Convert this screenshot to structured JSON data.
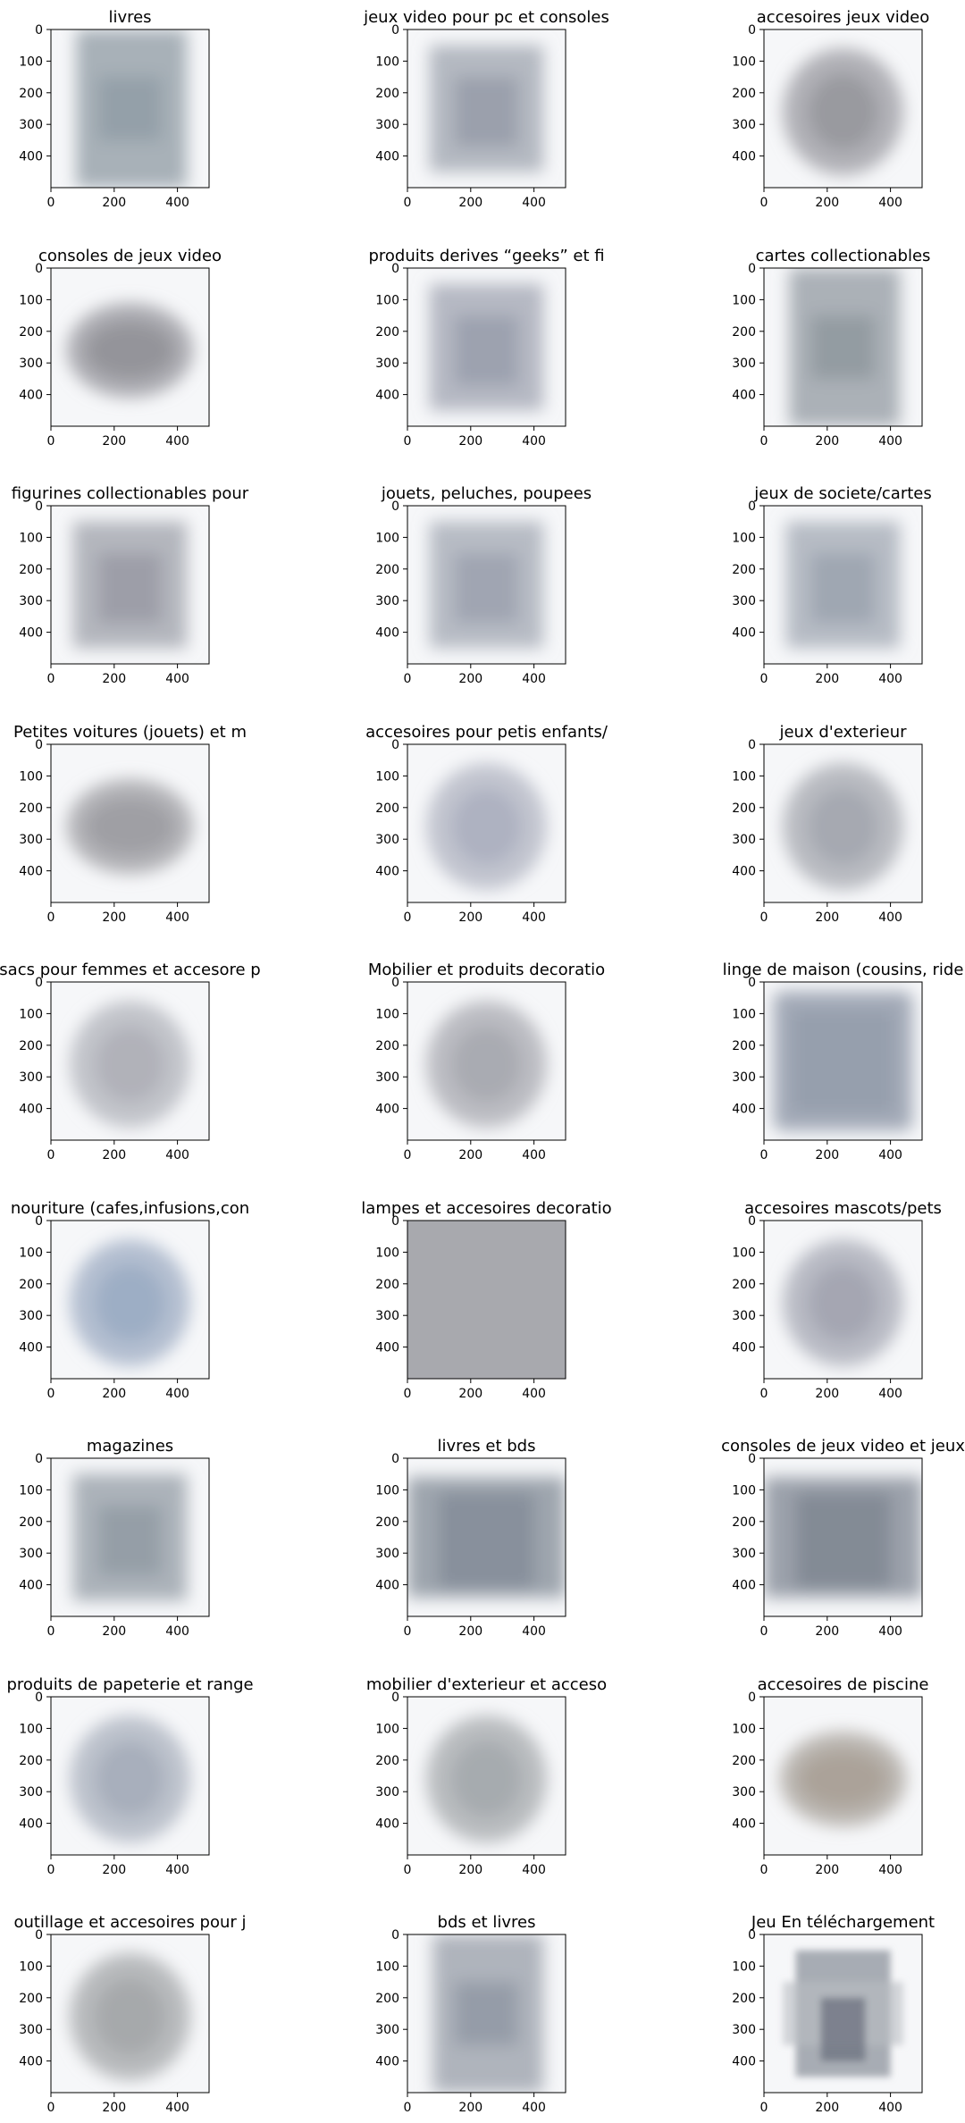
{
  "chart_data": {
    "type": "heatmap",
    "description_of_axes": "each panel shows the mean image of a product category; x and y in pixel units of the averaged image",
    "xlim": [
      0,
      500
    ],
    "ylim": [
      500,
      0
    ],
    "xticks": [
      0,
      200,
      400
    ],
    "yticks": [
      0,
      100,
      200,
      300,
      400
    ],
    "grid": false,
    "layout": {
      "rows": 9,
      "cols": 3
    },
    "panels": [
      {
        "title": "livres",
        "tint": "#9aa4ad",
        "shape": "rect-tall",
        "dominant": "#8d98a2"
      },
      {
        "title": "jeux video pour pc et consoles",
        "tint": "#a4a9b3",
        "shape": "rect",
        "dominant": "#8c93a2"
      },
      {
        "title": "accesoires jeux video",
        "tint": "#a5a5aa",
        "shape": "blob",
        "dominant": "#8f9095"
      },
      {
        "title": "consoles de jeux video",
        "tint": "#a1a1a7",
        "shape": "wide",
        "dominant": "#8a8a90"
      },
      {
        "title": "produits derives “geeks” et fi",
        "tint": "#a5a9b5",
        "shape": "rect",
        "dominant": "#8f95a6"
      },
      {
        "title": "cartes collectionables",
        "tint": "#9ea5ab",
        "shape": "rect-tall",
        "dominant": "#8a939a"
      },
      {
        "title": "figurines collectionables pour",
        "tint": "#a4a6af",
        "shape": "rect",
        "dominant": "#90929d"
      },
      {
        "title": "jouets, peluches, poupees",
        "tint": "#a7adb8",
        "shape": "rect",
        "dominant": "#939aa8"
      },
      {
        "title": "jeux de societe/cartes",
        "tint": "#a6adb8",
        "shape": "rect",
        "dominant": "#939ba7"
      },
      {
        "title": "Petites voitures (jouets) et m",
        "tint": "#a8a8ad",
        "shape": "wide",
        "dominant": "#96969b"
      },
      {
        "title": "accesoires pour petis enfants/",
        "tint": "#b8bcc8",
        "shape": "blob",
        "dominant": "#a5aabb"
      },
      {
        "title": "jeux d'exterieur",
        "tint": "#aeb0b7",
        "shape": "blob",
        "dominant": "#9ea1ab"
      },
      {
        "title": "sacs pour femmes et accesore p",
        "tint": "#b9bbc2",
        "shape": "blob",
        "dominant": "#a9abb4"
      },
      {
        "title": "Mobilier et produits decoratio",
        "tint": "#b1b3b9",
        "shape": "blob",
        "dominant": "#a2a4ab"
      },
      {
        "title": "linge de maison (cousins, ride",
        "tint": "#9fa6b4",
        "shape": "pillow",
        "dominant": "#8e97a7"
      },
      {
        "title": "nouriture (cafes,infusions,con",
        "tint": "#a8b5c9",
        "shape": "blob",
        "dominant": "#94a6c0"
      },
      {
        "title": "lampes et accesoires decoratio",
        "tint": "#a8a9ae",
        "shape": "full",
        "dominant": "#a4a5aa"
      },
      {
        "title": "accesoires mascots/pets",
        "tint": "#aeb0bb",
        "shape": "blob",
        "dominant": "#9c9eac"
      },
      {
        "title": "magazines",
        "tint": "#98a1aa",
        "shape": "rect",
        "dominant": "#8a939c"
      },
      {
        "title": "livres et bds",
        "tint": "#8e96a1",
        "shape": "rect-wide",
        "dominant": "#7f8894"
      },
      {
        "title": "consoles de jeux video et jeux",
        "tint": "#8c939d",
        "shape": "rect-wide",
        "dominant": "#7b828d"
      },
      {
        "title": "produits de papeterie et range",
        "tint": "#b3b8c4",
        "shape": "blob",
        "dominant": "#a0a6b5"
      },
      {
        "title": "mobilier d'exterieur et acceso",
        "tint": "#aeb2b5",
        "shape": "blob",
        "dominant": "#a0a4a8"
      },
      {
        "title": "accesoires de piscine",
        "tint": "#b0aca6",
        "shape": "wide",
        "dominant": "#a49b8e"
      },
      {
        "title": "outillage et accesoires pour j",
        "tint": "#adafb1",
        "shape": "blob",
        "dominant": "#a0a2a4"
      },
      {
        "title": "bds et livres",
        "tint": "#a2a8b2",
        "shape": "rect-tall",
        "dominant": "#8b93a0"
      },
      {
        "title": "Jeu En téléchargement",
        "tint": "#8e939c",
        "shape": "cross",
        "dominant": "#6f7582"
      }
    ]
  }
}
